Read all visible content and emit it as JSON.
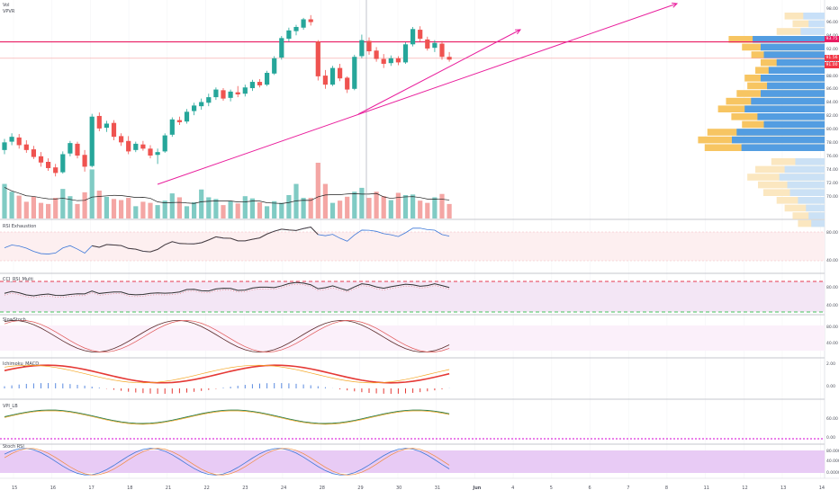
{
  "legend": {
    "symbol": "Vol",
    "profile": "VPVR"
  },
  "panes": {
    "rsi": "RSI Exhaustion",
    "cci": "CCI_RSI_Multi",
    "stoch": "SlowStoch",
    "macd": "Ichimoku_MACD",
    "vpi": "VPI_LB",
    "srsi": "Stoch RSI"
  },
  "price_axis": {
    "ticks": [
      "98.00",
      "96.00",
      "94.00",
      "92.00",
      "90.00",
      "88.00",
      "86.00",
      "84.00",
      "82.00",
      "80.00",
      "78.00",
      "76.00",
      "74.00",
      "72.00",
      "70.00"
    ],
    "tags": [
      {
        "text": "93.75",
        "color": "#e91e63"
      },
      {
        "text": "91.56",
        "color": "#f23645"
      },
      {
        "text": "91.00",
        "color": "#f23645"
      }
    ]
  },
  "rsi_axis": [
    "80.00",
    "40.00"
  ],
  "cci_axis": [
    "80.00",
    "40.00"
  ],
  "stoch_axis": [
    "80.00",
    "40.00"
  ],
  "macd_axis": [
    "2.00",
    "0.00"
  ],
  "vpi_axis": [
    "60.00",
    "0.00"
  ],
  "srsi_axis": [
    "80.0000",
    "40.0000",
    "0.0000"
  ],
  "x_axis": [
    "15",
    "16",
    "17",
    "18",
    "21",
    "22",
    "23",
    "24",
    "28",
    "29",
    "30",
    "31",
    "Jun",
    "4",
    "5",
    "6",
    "7",
    "8",
    "11",
    "12",
    "13",
    "14"
  ],
  "colors": {
    "up": "#26a69a",
    "down": "#ef5350",
    "up_vol": "#80cbc4",
    "down_vol": "#f4a6a4",
    "trend": "#e91e9c",
    "hline": "#e91e63"
  },
  "candles": [
    [
      78.2,
      79.8,
      77.6,
      79.3
    ],
    [
      79.4,
      80.6,
      78.9,
      80.1
    ],
    [
      80.0,
      80.5,
      78.4,
      78.9
    ],
    [
      79.0,
      79.6,
      77.8,
      78.2
    ],
    [
      78.3,
      78.8,
      76.9,
      77.2
    ],
    [
      77.3,
      77.9,
      75.8,
      76.4
    ],
    [
      76.5,
      77.0,
      75.2,
      75.6
    ],
    [
      75.7,
      76.2,
      74.4,
      74.9
    ],
    [
      75.0,
      78.0,
      74.8,
      77.6
    ],
    [
      77.7,
      79.5,
      77.3,
      79.2
    ],
    [
      79.1,
      79.4,
      77.0,
      77.4
    ],
    [
      77.5,
      78.2,
      75.1,
      75.8
    ],
    [
      75.9,
      83.4,
      75.7,
      83.0
    ],
    [
      83.1,
      83.6,
      80.9,
      81.3
    ],
    [
      81.4,
      82.4,
      80.8,
      82.0
    ],
    [
      82.1,
      82.5,
      79.6,
      80.1
    ],
    [
      80.2,
      80.6,
      78.8,
      79.3
    ],
    [
      79.5,
      80.2,
      77.6,
      78.0
    ],
    [
      78.2,
      79.4,
      77.9,
      79.1
    ],
    [
      79.0,
      79.5,
      78.1,
      78.4
    ],
    [
      78.4,
      78.9,
      77.0,
      77.4
    ],
    [
      77.5,
      78.4,
      76.2,
      77.9
    ],
    [
      78.0,
      80.6,
      77.8,
      80.3
    ],
    [
      80.4,
      82.9,
      80.1,
      82.6
    ],
    [
      82.5,
      83.0,
      81.8,
      82.2
    ],
    [
      82.3,
      84.1,
      82.0,
      83.7
    ],
    [
      83.8,
      85.0,
      83.2,
      84.6
    ],
    [
      84.5,
      85.6,
      84.0,
      85.1
    ],
    [
      85.0,
      86.3,
      84.5,
      85.8
    ],
    [
      85.8,
      87.2,
      85.4,
      86.9
    ],
    [
      86.8,
      87.1,
      85.3,
      85.6
    ],
    [
      85.7,
      86.9,
      85.2,
      86.6
    ],
    [
      86.5,
      87.4,
      85.8,
      86.2
    ],
    [
      86.3,
      87.6,
      85.9,
      87.2
    ],
    [
      87.1,
      88.3,
      86.7,
      88.0
    ],
    [
      88.0,
      88.4,
      87.2,
      87.5
    ],
    [
      87.6,
      89.6,
      87.4,
      89.3
    ],
    [
      89.2,
      91.7,
      89.0,
      91.4
    ],
    [
      91.5,
      94.6,
      91.2,
      94.3
    ],
    [
      94.2,
      95.8,
      93.8,
      95.4
    ],
    [
      95.3,
      96.2,
      94.7,
      95.9
    ],
    [
      95.8,
      97.2,
      95.5,
      97.0
    ],
    [
      97.0,
      97.6,
      96.1,
      96.6
    ],
    [
      93.8,
      94.0,
      88.2,
      88.8
    ],
    [
      88.9,
      89.7,
      87.0,
      87.6
    ],
    [
      87.6,
      90.3,
      87.4,
      90.0
    ],
    [
      90.0,
      90.6,
      88.1,
      88.5
    ],
    [
      88.6,
      88.8,
      86.4,
      86.9
    ],
    [
      87.0,
      91.9,
      86.8,
      91.6
    ],
    [
      91.7,
      94.8,
      91.4,
      94.0
    ],
    [
      93.9,
      94.4,
      91.9,
      92.4
    ],
    [
      92.5,
      93.0,
      90.9,
      91.3
    ],
    [
      91.3,
      92.0,
      90.0,
      90.6
    ],
    [
      90.7,
      91.8,
      90.3,
      91.4
    ],
    [
      91.4,
      91.7,
      90.4,
      90.8
    ],
    [
      90.8,
      93.7,
      90.6,
      93.4
    ],
    [
      93.4,
      95.9,
      93.1,
      95.6
    ],
    [
      95.5,
      96.0,
      93.8,
      94.2
    ],
    [
      94.1,
      94.5,
      92.5,
      92.8
    ],
    [
      92.9,
      94.0,
      92.3,
      93.6
    ],
    [
      93.5,
      93.9,
      91.2,
      91.6
    ],
    [
      91.6,
      92.3,
      90.9,
      91.2
    ]
  ],
  "volumes": [
    0.62,
    0.48,
    0.41,
    0.3,
    0.39,
    0.28,
    0.26,
    0.37,
    0.53,
    0.4,
    0.26,
    0.47,
    0.88,
    0.5,
    0.39,
    0.35,
    0.33,
    0.37,
    0.22,
    0.3,
    0.28,
    0.24,
    0.32,
    0.45,
    0.38,
    0.22,
    0.29,
    0.52,
    0.38,
    0.35,
    0.24,
    0.31,
    0.27,
    0.4,
    0.36,
    0.29,
    0.22,
    0.31,
    0.28,
    0.42,
    0.62,
    0.37,
    0.37,
    1.0,
    0.62,
    0.28,
    0.32,
    0.39,
    0.48,
    0.55,
    0.37,
    0.48,
    0.4,
    0.33,
    0.46,
    0.42,
    0.43,
    0.32,
    0.28,
    0.38,
    0.44,
    0.26
  ]
}
